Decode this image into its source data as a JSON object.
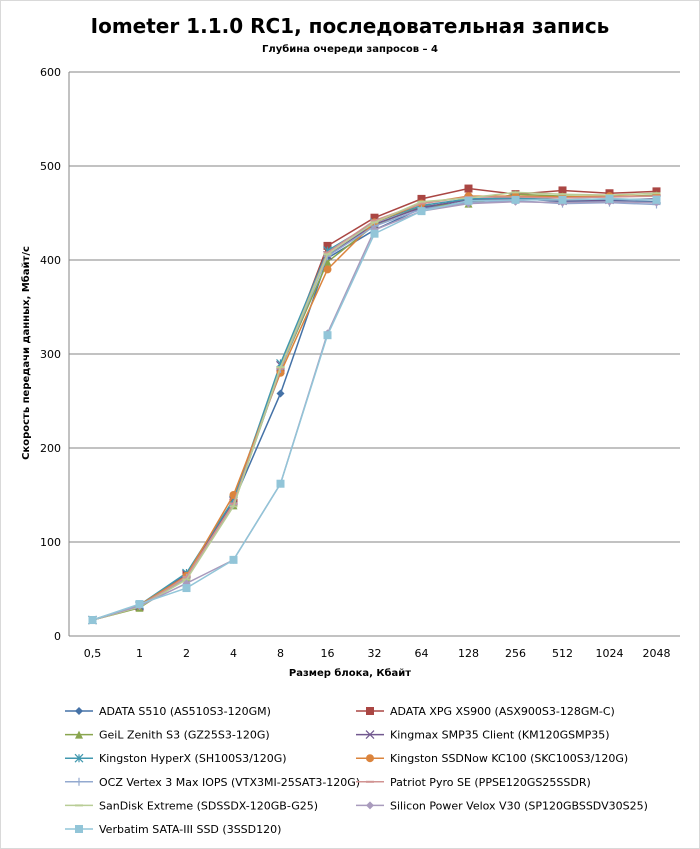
{
  "chart_data": {
    "type": "line",
    "title": "Iometer 1.1.0 RC1, последовательная запись",
    "subtitle": "Глубина очереди запросов – 4",
    "xlabel": "Размер блока, Кбайт",
    "ylabel": "Скорость передачи данных, Мбайт/с",
    "ylim": [
      0,
      600
    ],
    "yticks": [
      0,
      100,
      200,
      300,
      400,
      500,
      600
    ],
    "grid": true,
    "legend_position": "bottom",
    "categories": [
      "0,5",
      "1",
      "2",
      "4",
      "8",
      "16",
      "32",
      "64",
      "128",
      "256",
      "512",
      "1024",
      "2048"
    ],
    "series": [
      {
        "name": "ADATA S510 (AS510S3-120GM)",
        "color": "#4572A7",
        "marker": "diamond",
        "values": [
          17,
          31,
          65,
          143,
          258,
          402,
          432,
          455,
          462,
          466,
          462,
          463,
          462
        ]
      },
      {
        "name": "ADATA XPG XS900 (ASX900S3-128GM-C)",
        "color": "#AA4643",
        "marker": "square",
        "values": [
          17,
          31,
          65,
          142,
          283,
          415,
          445,
          465,
          476,
          470,
          474,
          471,
          473
        ]
      },
      {
        "name": "GeiL Zenith S3 (GZ25S3-120G)",
        "color": "#89A54E",
        "marker": "triangle",
        "values": [
          17,
          30,
          62,
          139,
          284,
          398,
          437,
          457,
          460,
          470,
          468,
          467,
          469
        ]
      },
      {
        "name": "Kingmax SMP35 Client (KM120GSMP35)",
        "color": "#71588F",
        "marker": "x",
        "values": [
          17,
          32,
          66,
          144,
          288,
          405,
          438,
          456,
          464,
          465,
          463,
          464,
          465
        ]
      },
      {
        "name": "Kingston HyperX (SH100S3/120G)",
        "color": "#4198AF",
        "marker": "star",
        "values": [
          17,
          33,
          67,
          145,
          290,
          410,
          440,
          458,
          465,
          466,
          464,
          465,
          464
        ]
      },
      {
        "name": "Kingston SSDNow KC100 (SKC100S3/120G)",
        "color": "#DB843D",
        "marker": "circle",
        "values": [
          17,
          33,
          64,
          150,
          280,
          390,
          440,
          460,
          468,
          468,
          467,
          468,
          468
        ]
      },
      {
        "name": "OCZ Vertex 3 Max IOPS (VTX3MI-25SAT3-120G)",
        "color": "#93A9CF",
        "marker": "plus",
        "values": [
          17,
          32,
          62,
          140,
          284,
          404,
          436,
          454,
          461,
          463,
          460,
          461,
          459
        ]
      },
      {
        "name": "Patriot Pyro SE (PPSE120GS25SSDR)",
        "color": "#D19392",
        "marker": "dash",
        "values": [
          17,
          31,
          63,
          141,
          285,
          408,
          442,
          460,
          467,
          467,
          466,
          467,
          468
        ]
      },
      {
        "name": "SanDisk Extreme (SDSSDX-120GB-G25)",
        "color": "#B9CD96",
        "marker": "dash",
        "values": [
          17,
          31,
          60,
          138,
          286,
          406,
          440,
          462,
          466,
          472,
          470,
          469,
          471
        ]
      },
      {
        "name": "Silicon Power Velox V30 (SP120GBSSDV30S25)",
        "color": "#A99BBD",
        "marker": "diamond",
        "values": [
          17,
          32,
          56,
          81,
          162,
          322,
          432,
          452,
          460,
          462,
          461,
          462,
          461
        ]
      },
      {
        "name": "Verbatim SATA-III SSD (3SSD120)",
        "color": "#92C5D8",
        "marker": "square",
        "values": [
          17,
          34,
          51,
          81,
          162,
          320,
          428,
          452,
          463,
          464,
          464,
          465,
          464
        ]
      }
    ]
  }
}
